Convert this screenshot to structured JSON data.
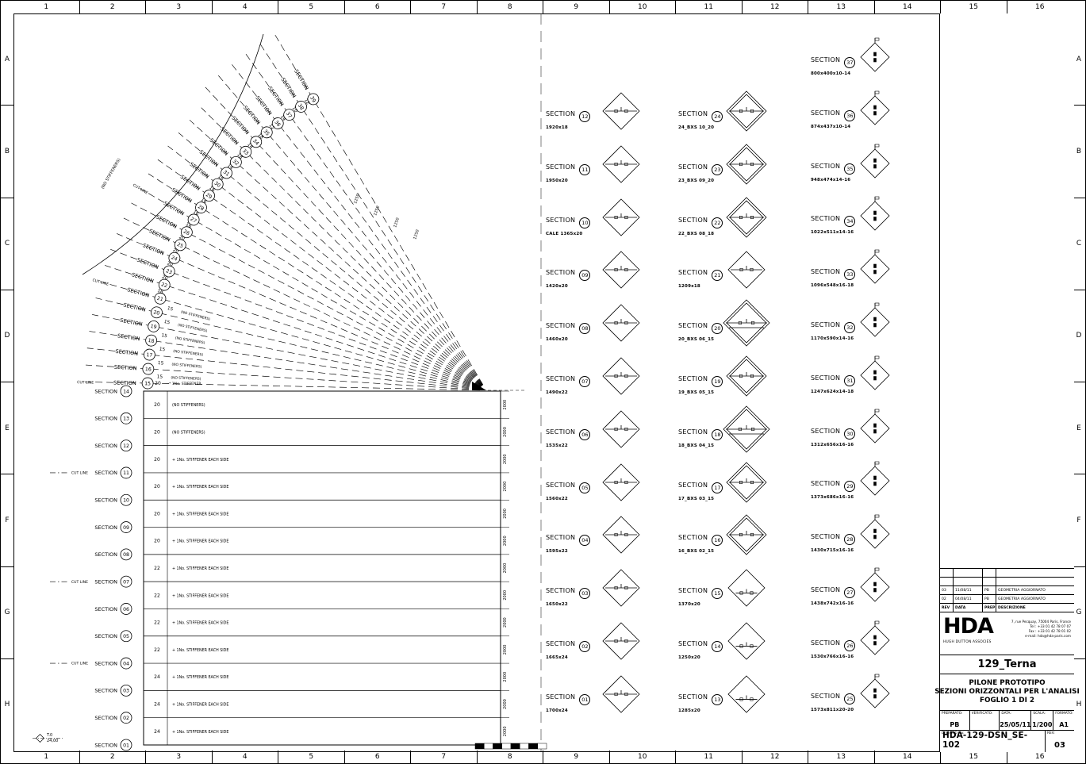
{
  "frame": {
    "cols": [
      "1",
      "2",
      "3",
      "4",
      "5",
      "6",
      "7",
      "8",
      "9",
      "10",
      "11",
      "12",
      "13",
      "14",
      "15",
      "16"
    ],
    "rows": [
      "A",
      "B",
      "C",
      "D",
      "E",
      "F",
      "G",
      "H"
    ]
  },
  "drawing": {
    "section_word": "SECTION",
    "cut_line": "CUT LINE",
    "no_stiffeners_arc": "(NO STIFFENERS)",
    "base_marker": {
      "label": "T.0",
      "value": "24,00"
    },
    "right_dim": "2000",
    "fan_dims": [
      "1250",
      "1250",
      "1250",
      "1250"
    ],
    "rect_sections": [
      {
        "num": "14",
        "cut": false
      },
      {
        "num": "13",
        "cut": false
      },
      {
        "num": "12",
        "cut": false
      },
      {
        "num": "11",
        "cut": true
      },
      {
        "num": "10",
        "cut": false
      },
      {
        "num": "09",
        "cut": false
      },
      {
        "num": "08",
        "cut": false
      },
      {
        "num": "07",
        "cut": true
      },
      {
        "num": "06",
        "cut": false
      },
      {
        "num": "05",
        "cut": false
      },
      {
        "num": "04",
        "cut": true
      },
      {
        "num": "03",
        "cut": false
      },
      {
        "num": "02",
        "cut": false
      },
      {
        "num": "01",
        "cut": false
      }
    ],
    "rect_gaps": [
      {
        "t": "20",
        "note": "(NO STIFFENERS)"
      },
      {
        "t": "20",
        "note": "(NO STIFFENERS)"
      },
      {
        "t": "20",
        "note": "+ 1No. STIFFENER EACH SIDE"
      },
      {
        "t": "20",
        "note": "+ 1No. STIFFENER EACH SIDE"
      },
      {
        "t": "20",
        "note": "+ 1No. STIFFENER EACH SIDE"
      },
      {
        "t": "20",
        "note": "+ 1No. STIFFENER EACH SIDE"
      },
      {
        "t": "22",
        "note": "+ 1No. STIFFENER EACH SIDE"
      },
      {
        "t": "22",
        "note": "+ 1No. STIFFENER EACH SIDE"
      },
      {
        "t": "22",
        "note": "+ 1No. STIFFENER EACH SIDE"
      },
      {
        "t": "22",
        "note": "+ 1No. STIFFENER EACH SIDE"
      },
      {
        "t": "24",
        "note": "+ 1No. STIFFENER EACH SIDE"
      },
      {
        "t": "24",
        "note": "+ 1No. STIFFENER EACH SIDE"
      },
      {
        "t": "24",
        "note": "+ 1No. STIFFENER EACH SIDE"
      }
    ],
    "fan_sections": [
      {
        "num": "15",
        "cut": true
      },
      {
        "num": "16",
        "cut": false
      },
      {
        "num": "17",
        "cut": false
      },
      {
        "num": "18",
        "cut": false
      },
      {
        "num": "19",
        "cut": false
      },
      {
        "num": "20",
        "cut": false
      },
      {
        "num": "21",
        "cut": true
      },
      {
        "num": "22",
        "cut": false
      },
      {
        "num": "23",
        "cut": false
      },
      {
        "num": "24",
        "cut": false
      },
      {
        "num": "25",
        "cut": false
      },
      {
        "num": "26",
        "cut": false
      },
      {
        "num": "27",
        "cut": true
      },
      {
        "num": "28",
        "cut": false
      },
      {
        "num": "29",
        "cut": false
      },
      {
        "num": "30",
        "cut": false
      },
      {
        "num": "31",
        "cut": false
      },
      {
        "num": "32",
        "cut": false
      },
      {
        "num": "33",
        "cut": false
      },
      {
        "num": "34",
        "cut": false
      },
      {
        "num": "35",
        "cut": false
      },
      {
        "num": "36",
        "cut": false
      },
      {
        "num": "37",
        "cut": false
      },
      {
        "num": "38",
        "cut": false
      },
      {
        "num": "39",
        "cut": false
      }
    ],
    "fan_gaps": [
      {
        "t": "20",
        "note": "* 1No. STIFFENER"
      },
      {
        "t": "15",
        "note": "(NO STIFFENERS)"
      },
      {
        "t": "15",
        "note": "(NO STIFFENERS)"
      },
      {
        "t": "15",
        "note": "(NO STIFFENERS)"
      },
      {
        "t": "15",
        "note": "(NO STIFFENERS)"
      },
      {
        "t": "15",
        "note": "(NO STIFFENERS)"
      },
      {
        "t": "15",
        "note": "(NO STIFFENERS)"
      },
      {
        "t": "18",
        "note": ""
      },
      {
        "t": "20",
        "note": ""
      },
      {
        "t": "20",
        "note": ""
      },
      {
        "t": "20",
        "note": ""
      },
      {
        "t": "20",
        "note": ""
      },
      {
        "t": "16",
        "note": ""
      },
      {
        "t": "16",
        "note": ""
      },
      {
        "t": "16",
        "note": ""
      },
      {
        "t": "16",
        "note": ""
      },
      {
        "t": "16",
        "note": ""
      },
      {
        "t": "14",
        "note": ""
      },
      {
        "t": "18",
        "note": ""
      },
      {
        "t": "14",
        "note": ""
      },
      {
        "t": "18",
        "note": ""
      },
      {
        "t": "12",
        "note": ""
      },
      {
        "t": "14",
        "note": ""
      },
      {
        "t": "10",
        "note": ""
      },
      {
        "t": "12",
        "note": ""
      }
    ]
  },
  "details": {
    "section_word": "SECTION",
    "columns": [
      {
        "items": [
          {
            "num": "12",
            "sub": "1920x18",
            "icon": "plate"
          },
          {
            "num": "11",
            "sub": "1950x20",
            "icon": "plate"
          },
          {
            "num": "10",
            "sub": "CALE 1365x20",
            "icon": "plate"
          },
          {
            "num": "09",
            "sub": "1420x20",
            "icon": "plate"
          },
          {
            "num": "08",
            "sub": "1460x20",
            "icon": "plate"
          },
          {
            "num": "07",
            "sub": "1490x22",
            "icon": "plate"
          },
          {
            "num": "06",
            "sub": "1535x22",
            "icon": "plate"
          },
          {
            "num": "05",
            "sub": "1560x22",
            "icon": "plate"
          },
          {
            "num": "04",
            "sub": "1595x22",
            "icon": "plate"
          },
          {
            "num": "03",
            "sub": "1650x22",
            "icon": "plate"
          },
          {
            "num": "02",
            "sub": "1665x24",
            "icon": "plate"
          },
          {
            "num": "01",
            "sub": "1700x24",
            "icon": "plate"
          }
        ]
      },
      {
        "items": [
          {
            "num": "24",
            "sub": "24_BXS 10_20",
            "icon": "box"
          },
          {
            "num": "23",
            "sub": "23_BXS 09_20",
            "icon": "box"
          },
          {
            "num": "22",
            "sub": "22_BXS 08_18",
            "icon": "box"
          },
          {
            "num": "21",
            "sub": "1209x18",
            "icon": "plate"
          },
          {
            "num": "20",
            "sub": "20_BXS 06_15",
            "icon": "boxbig"
          },
          {
            "num": "19",
            "sub": "19_BXS 05_15",
            "icon": "box"
          },
          {
            "num": "18",
            "sub": "18_BXS 04_15",
            "icon": "boxbig"
          },
          {
            "num": "17",
            "sub": "17_BXS 03_15",
            "icon": "box"
          },
          {
            "num": "16",
            "sub": "16_BXS 02_15",
            "icon": "box"
          },
          {
            "num": "15",
            "sub": "1370x20",
            "icon": "plate2"
          },
          {
            "num": "14",
            "sub": "1250x20",
            "icon": "plate2"
          },
          {
            "num": "13",
            "sub": "1285x20",
            "icon": "plate2"
          }
        ]
      },
      {
        "items": [
          {
            "num": "37",
            "sub": "800x400x10-14",
            "icon": "small"
          },
          {
            "num": "36",
            "sub": "874x437x10-14",
            "icon": "small"
          },
          {
            "num": "35",
            "sub": "948x474x14-16",
            "icon": "small"
          },
          {
            "num": "34",
            "sub": "1022x511x14-16",
            "icon": "small"
          },
          {
            "num": "33",
            "sub": "1096x548x16-18",
            "icon": "small"
          },
          {
            "num": "32",
            "sub": "1170x590x14-16",
            "icon": "small"
          },
          {
            "num": "31",
            "sub": "1247x624x14-18",
            "icon": "small"
          },
          {
            "num": "30",
            "sub": "1312x656x16-16",
            "icon": "small"
          },
          {
            "num": "29",
            "sub": "1373x686x16-16",
            "icon": "small"
          },
          {
            "num": "28",
            "sub": "1430x715x16-16",
            "icon": "small"
          },
          {
            "num": "27",
            "sub": "1438x742x16-16",
            "icon": "small"
          },
          {
            "num": "26",
            "sub": "1530x766x16-16",
            "icon": "small"
          },
          {
            "num": "25",
            "sub": "1573x811x20-20",
            "icon": "small"
          }
        ]
      }
    ]
  },
  "title_block": {
    "logo": "HDA",
    "logo_sub": "HUGH DUTTON ASSOCIÉS",
    "address": [
      "7, rue Pecquay, 75004 Paris, France",
      "Tel : +33 01 42 78 07 07",
      "Fax : +33 01 42 78 01 02",
      "e-mail: hda@hda-paris.com"
    ],
    "project": "129_Terna",
    "title_lines": [
      "PILONE PROTOTIPO",
      "SEZIONI ORIZZONTALI PER L'ANALISI",
      "FOGLIO 1 DI 2"
    ],
    "revisions": [
      {
        "rev": "03",
        "data": "11/08/11",
        "prep": "PB",
        "desc": "GEOMETRIA AGGIORNATO"
      },
      {
        "rev": "02",
        "data": "04/08/11",
        "prep": "PB",
        "desc": "GEOMETRIA AGGIORNATO"
      }
    ],
    "rev_header": {
      "rev": "REV",
      "data": "DATA",
      "prep": "PREP",
      "desc": "DESCRIZIONE"
    },
    "fields": [
      {
        "label": "PREPARATO:",
        "value": "PB"
      },
      {
        "label": "VERIFICATO:",
        "value": ""
      },
      {
        "label": "DATA:",
        "value": "25/05/11"
      },
      {
        "label": "SCALA:",
        "value": "1/200"
      },
      {
        "label": "FORMATO:",
        "value": "A1"
      }
    ],
    "drawing_no_label": "DISEGNO No:",
    "drawing_no": "HDA-129-DSN_SE-102",
    "rev_label": "REV:",
    "rev_value": "03"
  }
}
